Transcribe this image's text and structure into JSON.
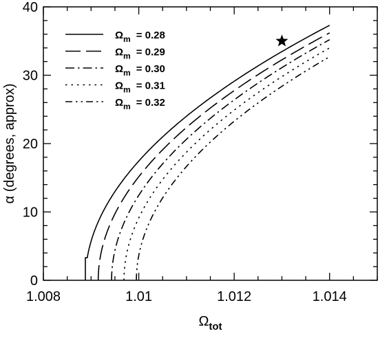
{
  "chart_data": {
    "type": "line",
    "xlabel": {
      "symbol": "Ω",
      "sub": "tot"
    },
    "ylabel": "α (degrees, approx)",
    "xlim": [
      1.008,
      1.015
    ],
    "ylim": [
      0,
      40
    ],
    "xticks": [
      1.008,
      1.01,
      1.012,
      1.014
    ],
    "xtick_labels": [
      "1.008",
      "1.01",
      "1.012",
      "1.014"
    ],
    "yticks": [
      0,
      10,
      20,
      30,
      40
    ],
    "ytick_labels": [
      "0",
      "10",
      "20",
      "30",
      "40"
    ],
    "grid": false,
    "legend": {
      "placement": "top-left",
      "symbol": "Ω",
      "sub": "m",
      "entries": [
        "= 0.28",
        "= 0.29",
        "= 0.30",
        "= 0.31",
        "= 0.32"
      ]
    },
    "series": [
      {
        "omega_m": 0.28,
        "dash": "solid",
        "onset_x": 1.00888,
        "onset_y": 3.3,
        "end_x": 1.014,
        "end_y": 37.3
      },
      {
        "omega_m": 0.29,
        "dash": "long-dash",
        "onset_x": 1.00915,
        "onset_y": 0.4,
        "end_x": 1.014,
        "end_y": 36.2
      },
      {
        "omega_m": 0.3,
        "dash": "dash-dot",
        "onset_x": 1.00943,
        "onset_y": 0.4,
        "end_x": 1.014,
        "end_y": 35.2
      },
      {
        "omega_m": 0.31,
        "dash": "dotted",
        "onset_x": 1.00969,
        "onset_y": 0.4,
        "end_x": 1.014,
        "end_y": 34.0
      },
      {
        "omega_m": 0.32,
        "dash": "dash-dot-dot",
        "onset_x": 1.00995,
        "onset_y": 0.4,
        "end_x": 1.014,
        "end_y": 32.7
      }
    ],
    "marker": {
      "shape": "star",
      "x": 1.013,
      "y": 35
    }
  },
  "colors": {
    "line": "#000000",
    "background": "#ffffff"
  }
}
